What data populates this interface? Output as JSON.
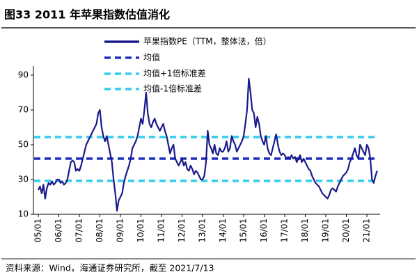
{
  "chart_data": {
    "type": "line",
    "title": "图33 2011 年苹果指数估值消化",
    "source": "资料来源：Wind，海通证券研究所，截至 2021/7/13",
    "categories": [
      "05/01",
      null,
      null,
      null,
      null,
      null,
      null,
      null,
      null,
      null,
      null,
      null,
      "06/01",
      null,
      null,
      null,
      null,
      null,
      null,
      null,
      null,
      null,
      null,
      null,
      "07/01",
      null,
      null,
      null,
      null,
      null,
      null,
      null,
      null,
      null,
      null,
      null,
      "08/01",
      null,
      null,
      null,
      null,
      null,
      null,
      null,
      null,
      null,
      null,
      null,
      "09/01",
      null,
      null,
      null,
      null,
      null,
      null,
      null,
      null,
      null,
      null,
      null,
      "10/01",
      null,
      null,
      null,
      null,
      null,
      null,
      null,
      null,
      null,
      null,
      null,
      "11/01",
      null,
      null,
      null,
      null,
      null,
      null,
      null,
      null,
      null,
      null,
      null,
      "12/01",
      null,
      null,
      null,
      null,
      null,
      null,
      null,
      null,
      null,
      null,
      null,
      "13/01",
      null,
      null,
      null,
      null,
      null,
      null,
      null,
      null,
      null,
      null,
      null,
      "14/01",
      null,
      null,
      null,
      null,
      null,
      null,
      null,
      null,
      null,
      null,
      null,
      "15/01",
      null,
      null,
      null,
      null,
      null,
      null,
      null,
      null,
      null,
      null,
      null,
      "16/01",
      null,
      null,
      null,
      null,
      null,
      null,
      null,
      null,
      null,
      null,
      null,
      "17/01",
      null,
      null,
      null,
      null,
      null,
      null,
      null,
      null,
      null,
      null,
      null,
      "18/01",
      null,
      null,
      null,
      null,
      null,
      null,
      null,
      null,
      null,
      null,
      null,
      "19/01",
      null,
      null,
      null,
      null,
      null,
      null,
      null,
      null,
      null,
      null,
      null,
      "20/01",
      null,
      null,
      null,
      null,
      null,
      null,
      null,
      null,
      null,
      null,
      null,
      "21/01",
      null,
      null,
      null,
      null,
      null,
      null
    ],
    "series": [
      {
        "name": "苹果指数PE（TTM，整体法，倍）",
        "color": "#1a1a8c",
        "values": [
          24,
          26,
          22,
          27,
          19,
          25,
          28,
          27,
          29,
          27,
          28,
          30,
          30,
          28,
          29,
          27,
          28,
          30,
          35,
          40,
          41,
          40,
          35,
          36,
          35,
          38,
          42,
          46,
          50,
          52,
          54,
          56,
          58,
          60,
          62,
          68,
          70,
          60,
          55,
          52,
          55,
          50,
          45,
          40,
          30,
          22,
          12,
          18,
          20,
          22,
          28,
          32,
          35,
          38,
          42,
          48,
          50,
          52,
          55,
          60,
          65,
          62,
          70,
          80,
          68,
          62,
          60,
          63,
          65,
          62,
          60,
          58,
          60,
          62,
          58,
          55,
          50,
          45,
          48,
          50,
          42,
          40,
          38,
          40,
          42,
          38,
          40,
          36,
          35,
          38,
          36,
          33,
          35,
          34,
          32,
          30,
          30,
          32,
          40,
          58,
          50,
          48,
          45,
          50,
          45,
          44,
          48,
          46,
          46,
          48,
          52,
          46,
          48,
          55,
          52,
          50,
          46,
          48,
          50,
          52,
          55,
          62,
          70,
          88,
          80,
          70,
          68,
          60,
          66,
          62,
          55,
          52,
          50,
          55,
          48,
          45,
          44,
          48,
          52,
          56,
          50,
          46,
          44,
          45,
          44,
          42,
          43,
          42,
          44,
          42,
          43,
          40,
          42,
          44,
          40,
          42,
          40,
          38,
          36,
          35,
          32,
          30,
          28,
          27,
          26,
          24,
          22,
          21,
          20,
          19,
          21,
          24,
          25,
          24,
          23,
          26,
          28,
          30,
          32,
          33,
          34,
          36,
          40,
          42,
          45,
          48,
          44,
          42,
          50,
          48,
          46,
          44,
          50,
          48,
          42,
          30,
          28,
          32,
          35
        ]
      }
    ],
    "reference_lines": [
      {
        "name": "均值",
        "color": "#1f2fc0",
        "value": 42
      },
      {
        "name": "均值+1倍标准差",
        "color": "#33ccee",
        "value": 54.4
      },
      {
        "name": "均值-1倍标准差",
        "color": "#33ccee",
        "value": 29.2
      }
    ],
    "ylim": [
      10,
      90
    ],
    "yticks": [
      10,
      30,
      50,
      70,
      90
    ]
  }
}
